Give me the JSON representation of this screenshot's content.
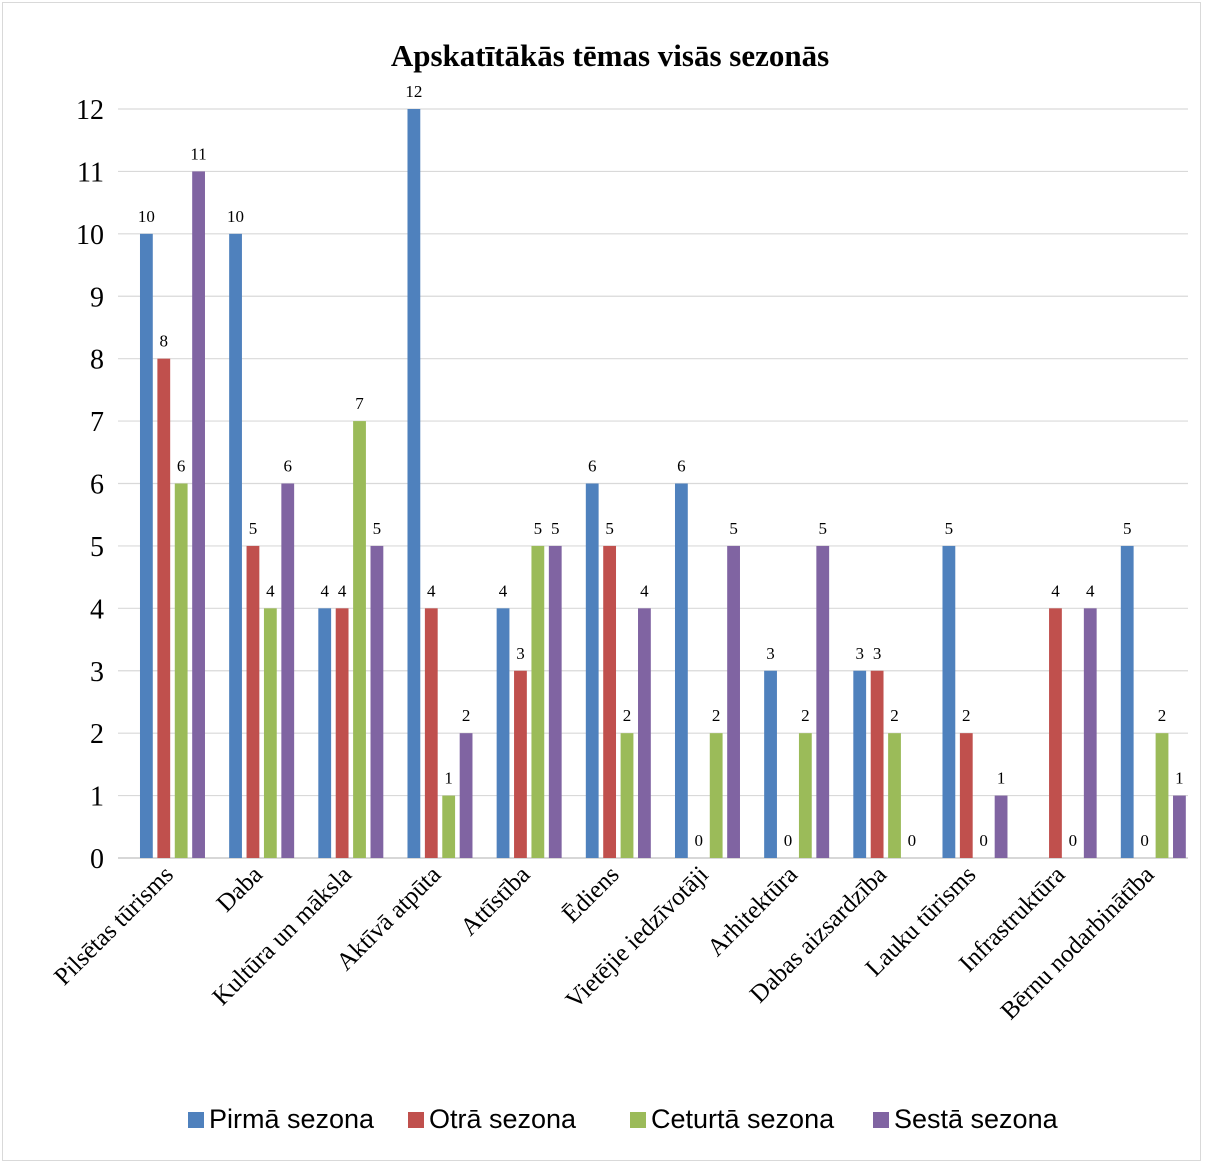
{
  "chart_data": {
    "type": "bar",
    "title": "Apskatītākās tēmas visās sezonās",
    "xlabel": "",
    "ylabel": "",
    "ylim": [
      0,
      12
    ],
    "yticks": [
      "0",
      "1",
      "2",
      "3",
      "4",
      "5",
      "6",
      "7",
      "8",
      "9",
      "10",
      "11",
      "12"
    ],
    "grid": true,
    "legend_position": "bottom",
    "categories": [
      "Pilsētas tūrisms",
      "Daba",
      "Kultūra un māksla",
      "Aktīvā atpūta",
      "Attīstība",
      "Ēdiens",
      "Vietējie iedzīvotāji",
      "Arhitektūra",
      "Dabas aizsardzība",
      "Lauku tūrisms",
      "Infrastruktūra",
      "Bērnu nodarbinātība"
    ],
    "series": [
      {
        "name": "Pirmā sezona",
        "color": "#4f81bd",
        "values": [
          10,
          10,
          4,
          12,
          4,
          6,
          6,
          3,
          3,
          5,
          null,
          5
        ],
        "labels": [
          "10",
          "10",
          "4",
          "12",
          "4",
          "6",
          "6",
          "3",
          "3",
          "5",
          "",
          "5"
        ]
      },
      {
        "name": "Otrā sezona",
        "color": "#c0504d",
        "values": [
          8,
          5,
          4,
          4,
          3,
          5,
          0,
          0,
          3,
          2,
          4,
          0
        ],
        "labels": [
          "8",
          "5",
          "4",
          "4",
          "3",
          "5",
          "0",
          "0",
          "3",
          "2",
          "4",
          "0"
        ]
      },
      {
        "name": "Ceturtā sezona",
        "color": "#9bbb59",
        "values": [
          6,
          4,
          7,
          1,
          5,
          2,
          2,
          2,
          2,
          0,
          0,
          2
        ],
        "labels": [
          "6",
          "4",
          "7",
          "1",
          "5",
          "2",
          "2",
          "2",
          "2",
          "0",
          "0",
          "2"
        ]
      },
      {
        "name": "Sestā sezona",
        "color": "#8064a2",
        "values": [
          11,
          6,
          5,
          2,
          5,
          4,
          5,
          5,
          0,
          1,
          4,
          1
        ],
        "labels": [
          "11",
          "6",
          "5",
          "2",
          "5",
          "4",
          "5",
          "5",
          "0",
          "1",
          "4",
          "1"
        ]
      }
    ]
  }
}
